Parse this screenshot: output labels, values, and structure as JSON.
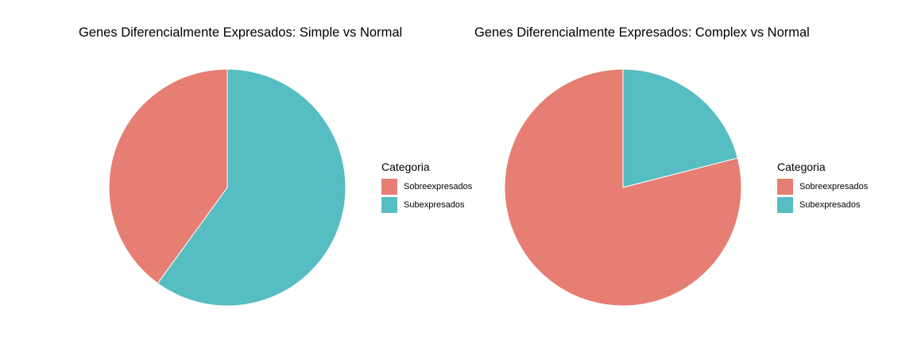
{
  "chart_data": [
    {
      "type": "pie",
      "title": "Genes Diferencialmente Expresados: Simple vs Normal",
      "legend_title": "Categoria",
      "legend_position": "right",
      "slices": [
        {
          "label": "Sobreexpresados",
          "value": 40,
          "color": "#E67E73"
        },
        {
          "label": "Subexpresados",
          "value": 60,
          "color": "#56BDC2"
        }
      ]
    },
    {
      "type": "pie",
      "title": "Genes Diferencialmente Expresados: Complex vs Normal",
      "legend_title": "Categoria",
      "legend_position": "right",
      "slices": [
        {
          "label": "Sobreexpresados",
          "value": 79,
          "color": "#E67E73"
        },
        {
          "label": "Subexpresados",
          "value": 21,
          "color": "#56BDC2"
        }
      ]
    }
  ]
}
